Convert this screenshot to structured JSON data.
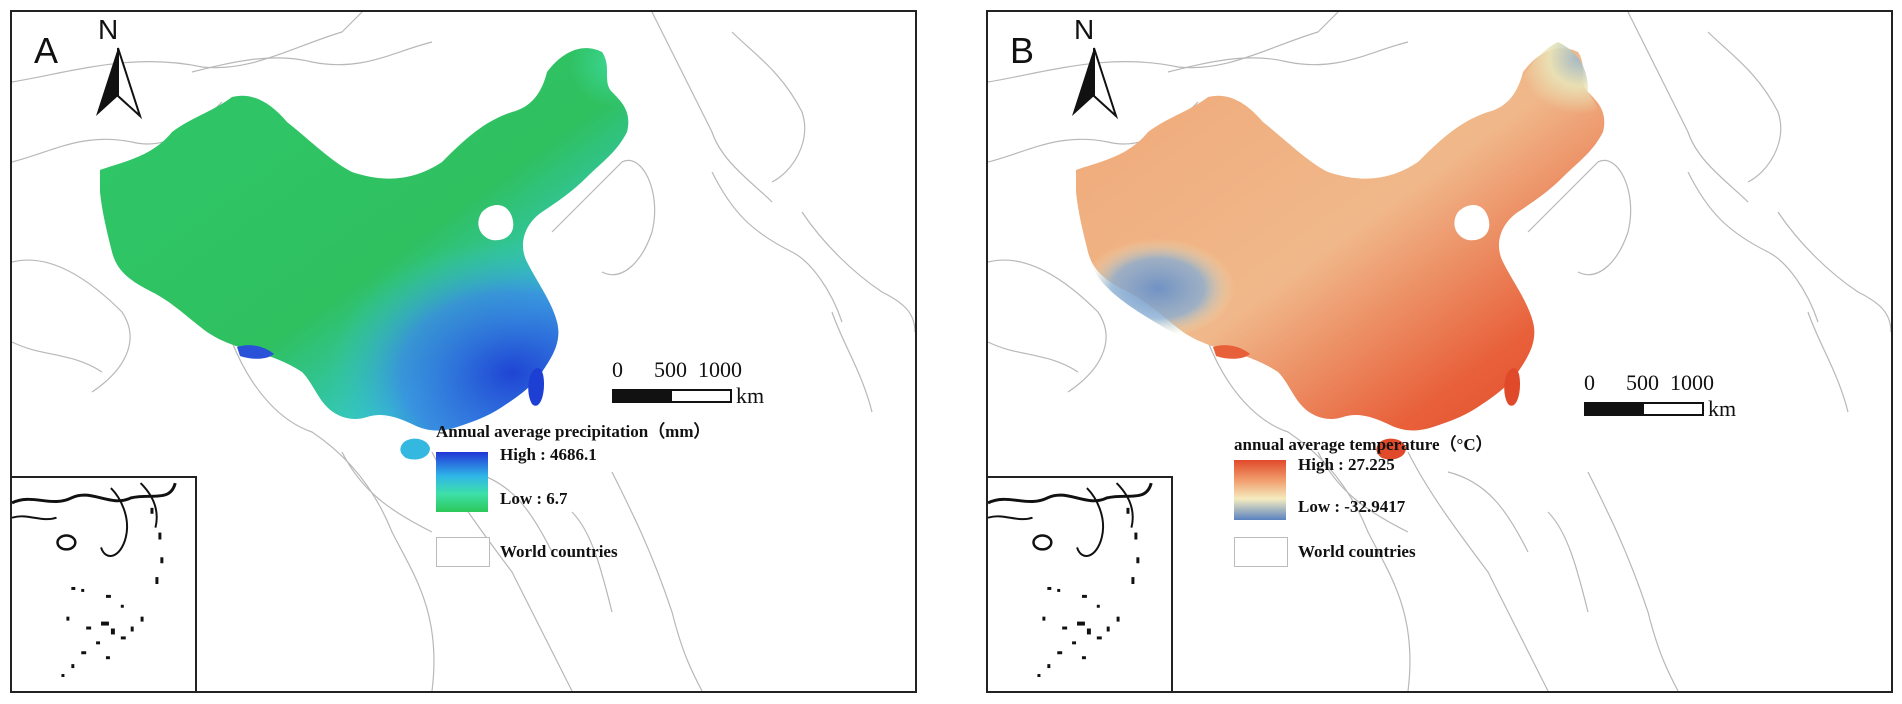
{
  "panels": [
    {
      "letter": "A",
      "north_label": "N",
      "scale": {
        "n0": "0",
        "n1": "500",
        "n2": "1000",
        "unit": "km"
      },
      "legend": {
        "title": "Annual average precipitation（mm）",
        "high": "High : 4686.1",
        "low": "Low : 6.7",
        "ramp_colors": [
          "#2235d6",
          "#2fb6e8",
          "#3ee0a8",
          "#2cc85a"
        ]
      },
      "world_label": "World countries",
      "map_colors": {
        "north": "#2fc86a",
        "northeast": "#3ed89a",
        "south": "#3a80e8",
        "southeast": "#1e3fd4",
        "southwest": "#35c8c8"
      }
    },
    {
      "letter": "B",
      "north_label": "N",
      "scale": {
        "n0": "0",
        "n1": "500",
        "n2": "1000",
        "unit": "km"
      },
      "legend": {
        "title": "annual average temperature（°C）",
        "high": "High : 27.225",
        "low": "Low : -32.9417",
        "ramp_colors": [
          "#e04a2a",
          "#f2a070",
          "#f4ecc0",
          "#5a82c0"
        ]
      },
      "world_label": "World countries",
      "map_colors": {
        "north": "#f0a878",
        "northeast": "#e8e4b8",
        "south": "#e8603a",
        "southeast": "#e04a2a",
        "tibet": "#7a9ed0"
      }
    }
  ]
}
